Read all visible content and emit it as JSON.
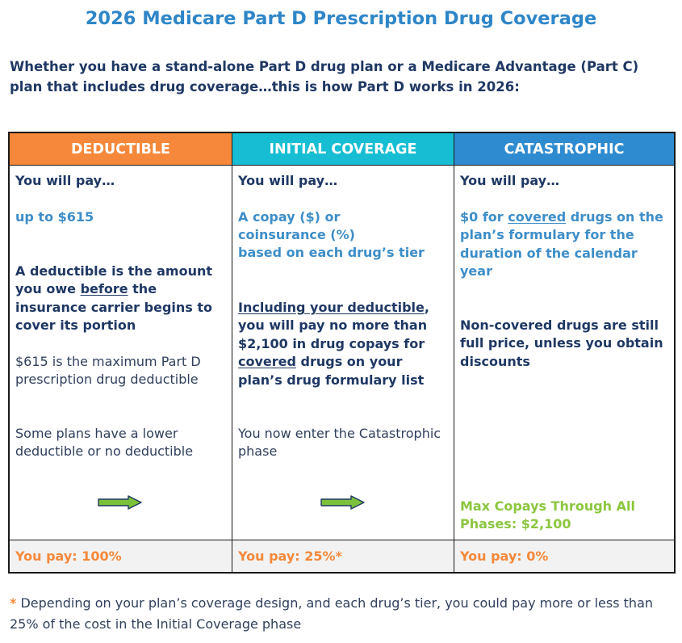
{
  "title": "2026 Medicare Part D Prescription Drug Coverage",
  "intro": "Whether you have a stand-alone Part D drug plan or a Medicare Advantage (Part C) plan that includes drug coverage…this is how Part D works in 2026:",
  "columns": [
    {
      "header": "DEDUCTIBLE",
      "color": "#f5883a",
      "you_will_pay": "You will pay…",
      "amount": "up to $615",
      "desc_a": "A deductible is the amount you owe ",
      "desc_u": "before",
      "desc_b": " the insurance carrier begins to cover its portion",
      "note1": "$615 is the maximum Part D prescription drug deductible",
      "note2": "Some plans have a lower deductible or no deductible",
      "footer": "You pay:  100%"
    },
    {
      "header": "INITIAL COVERAGE",
      "color": "#17bed3",
      "you_will_pay": "You will pay…",
      "amount_1": "A copay ($) or",
      "amount_2": "coinsurance (%)",
      "amount_3": "based on each drug’s tier",
      "desc_u1": "Including your deductible",
      "desc_a": ", you will pay no more than $2,100 in drug copays for ",
      "desc_u2": "covered",
      "desc_b": " drugs on your plan’s drug formulary list",
      "note1": "You now enter the Catastrophic phase",
      "footer": "You pay:  25%*"
    },
    {
      "header": "CATASTROPHIC",
      "color": "#2e8bd0",
      "you_will_pay": "You will pay…",
      "amount_a": "$0 for ",
      "amount_u": "covered",
      "amount_b": " drugs on the plan’s formulary for the duration of the calendar year",
      "desc": "Non-covered drugs are still full price, unless you obtain discounts",
      "max": "Max Copays Through All Phases: $2,100",
      "footer": "You pay:  0%"
    }
  ],
  "footnote_star": "*",
  "footnote": " Depending on your plan’s coverage design, and each drug’s tier, you could pay more or less than 25% of the cost in the Initial Coverage phase",
  "icons": {
    "arrow": "right-arrow-icon"
  }
}
